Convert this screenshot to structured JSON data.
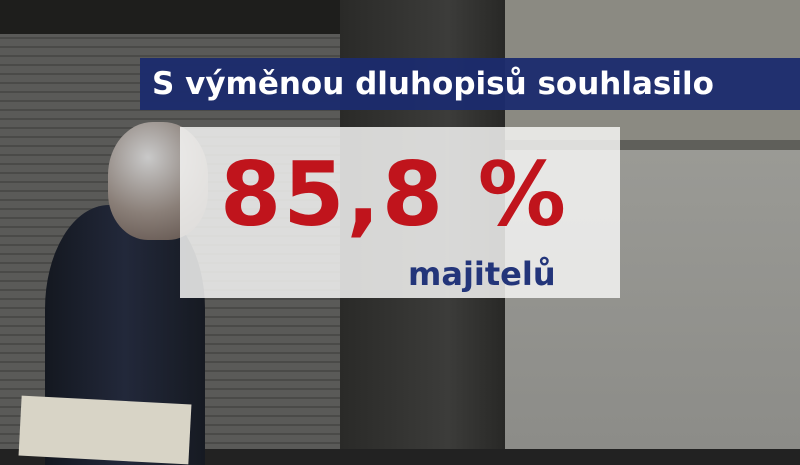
{
  "headline": "S výměnou dluhopisů souhlasilo",
  "figure": "85,8 %",
  "subject": "majitelů",
  "colors": {
    "title_bar": "#1b2b6e",
    "figure": "#c0141c",
    "subject": "#23357a"
  }
}
